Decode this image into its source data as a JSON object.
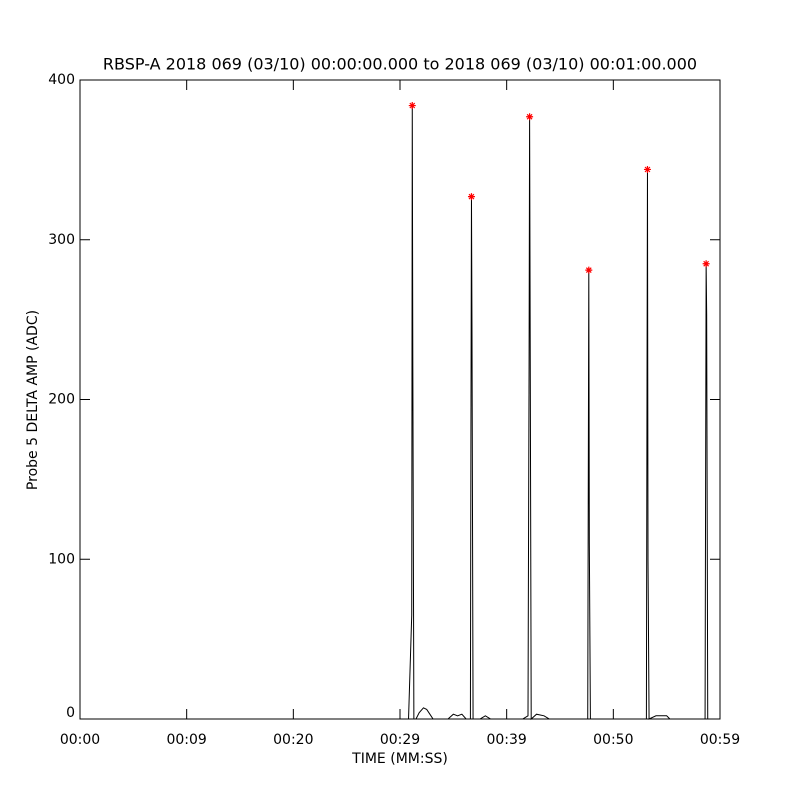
{
  "chart_data": {
    "type": "line",
    "title": "RBSP-A 2018 069 (03/10) 00:00:00.000 to 2018 069 (03/10) 00:01:00.000",
    "x_label": "TIME (MM:SS)",
    "y_label": "Probe 5 DELTA AMP (ADC)",
    "xlim": [
      0,
      60
    ],
    "ylim": [
      0,
      400
    ],
    "xticks": [
      {
        "value": 0,
        "label": "00:00"
      },
      {
        "value": 10,
        "label": "00:09"
      },
      {
        "value": 20,
        "label": "00:20"
      },
      {
        "value": 30,
        "label": "00:29"
      },
      {
        "value": 40,
        "label": "00:39"
      },
      {
        "value": 50,
        "label": "00:50"
      },
      {
        "value": 60,
        "label": "00:59"
      }
    ],
    "yticks": [
      0,
      100,
      200,
      300,
      400
    ],
    "grid": false,
    "series": [
      {
        "color": "#000000",
        "marker": "none",
        "x": [
          30.8,
          31.1,
          31.15,
          31.2,
          31.3,
          31.5,
          31.8,
          32.2,
          32.5,
          32.8,
          33.1,
          34.5,
          35,
          35.4,
          35.8,
          36.2,
          36.6,
          36.65,
          36.7,
          36.75,
          36.85,
          37.5,
          38,
          38.5,
          41.5,
          42.0,
          42.1,
          42.15,
          42.2,
          42.3,
          42.8,
          43.5,
          44,
          47.6,
          47.65,
          47.7,
          47.75,
          47.85,
          53.1,
          53.15,
          53.2,
          53.25,
          53.35,
          54,
          55,
          55.3,
          58.6,
          58.65,
          58.7,
          58.75,
          58.85
        ],
        "values": [
          0,
          65,
          384,
          226,
          0,
          0,
          4,
          7,
          6,
          3,
          0,
          0,
          3,
          2,
          3,
          0,
          0,
          180,
          327,
          240,
          0,
          0,
          2,
          0,
          0,
          2,
          220,
          377,
          252,
          0,
          3,
          2,
          0,
          0,
          143,
          281,
          110,
          0,
          0,
          183,
          344,
          100,
          0,
          2,
          2,
          0,
          0,
          145,
          285,
          253,
          0
        ]
      },
      {
        "color": "#ff0000",
        "marker": "asterisk",
        "x": [
          31.15,
          36.7,
          42.15,
          47.7,
          53.2,
          58.7
        ],
        "values": [
          384,
          327,
          377,
          281,
          344,
          285
        ]
      }
    ]
  }
}
